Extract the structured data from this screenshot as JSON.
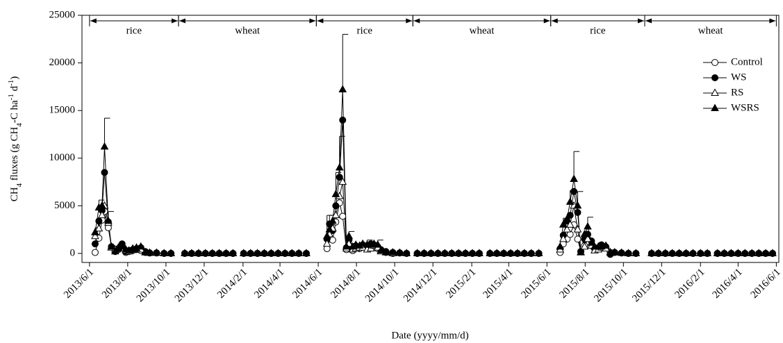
{
  "chart_data": {
    "type": "line",
    "xlabel": "Date (yyyy/mm/d)",
    "ylabel": [
      "CH",
      "4",
      " fluxes (g CH",
      "4",
      "-C ha",
      "-1",
      " d",
      "-1",
      ")"
    ],
    "ylabel_style": [
      "normal",
      "sub",
      "normal",
      "sub",
      "normal",
      "super",
      "normal",
      "super",
      "normal"
    ],
    "xlim": [
      "2013/5/20",
      "2016/6/5"
    ],
    "xticks": [
      "2013/6/1",
      "2013/8/1",
      "2013/10/1",
      "2013/12/1",
      "2014/2/1",
      "2014/4/1",
      "2014/6/1",
      "2014/8/1",
      "2014/10/1",
      "2014/12/1",
      "2015/2/1",
      "2015/4/1",
      "2015/6/1",
      "2015/8/1",
      "2015/10/1",
      "2015/12/1",
      "2016/2/1",
      "2016/4/1",
      "2016/6/1"
    ],
    "ylim": [
      -950,
      25000
    ],
    "yticks": [
      0,
      5000,
      10000,
      15000,
      20000,
      25000
    ],
    "legend": "upper right",
    "periods": [
      {
        "label": "rice",
        "start": "2013/6/1",
        "end": "2013/10/21"
      },
      {
        "label": "wheat",
        "start": "2013/10/21",
        "end": "2014/5/29"
      },
      {
        "label": "rice",
        "start": "2014/5/29",
        "end": "2014/10/30"
      },
      {
        "label": "wheat",
        "start": "2014/10/30",
        "end": "2015/6/7"
      },
      {
        "label": "rice",
        "start": "2015/6/7",
        "end": "2015/11/4"
      },
      {
        "label": "wheat",
        "start": "2015/11/4",
        "end": "2016/6/1"
      }
    ],
    "x": [
      "2013/6/10",
      "2013/6/16",
      "2013/6/21",
      "2013/6/25",
      "2013/7/1",
      "2013/7/6",
      "2013/7/12",
      "2013/7/17",
      "2013/7/23",
      "2013/7/29",
      "2013/8/3",
      "2013/8/9",
      "2013/8/15",
      "2013/8/22",
      "2013/8/29",
      "2013/9/5",
      "2013/9/16",
      "2013/9/28",
      "2013/10/9",
      "2013/10/31",
      "2013/11/11",
      "2013/11/22",
      "2013/12/3",
      "2013/12/14",
      "2013/12/25",
      "2014/1/5",
      "2014/1/16",
      "2014/2/2",
      "2014/2/13",
      "2014/2/24",
      "2014/3/7",
      "2014/3/18",
      "2014/3/29",
      "2014/4/9",
      "2014/4/20",
      "2014/5/1",
      "2014/5/13",
      "2014/6/15",
      "2014/6/19",
      "2014/6/24",
      "2014/6/29",
      "2014/7/5",
      "2014/7/10",
      "2014/7/16",
      "2014/7/20",
      "2014/7/26",
      "2014/7/31",
      "2014/8/6",
      "2014/8/11",
      "2014/8/18",
      "2014/8/24",
      "2014/8/29",
      "2014/9/4",
      "2014/9/9",
      "2014/9/17",
      "2014/9/28",
      "2014/10/9",
      "2014/10/20",
      "2014/11/6",
      "2014/11/17",
      "2014/11/28",
      "2014/12/9",
      "2014/12/20",
      "2014/12/31",
      "2015/1/11",
      "2015/1/22",
      "2015/2/2",
      "2015/2/13",
      "2015/3/2",
      "2015/3/13",
      "2015/3/24",
      "2015/4/4",
      "2015/4/15",
      "2015/4/26",
      "2015/5/7",
      "2015/5/19",
      "2015/6/22",
      "2015/6/27",
      "2015/7/3",
      "2015/7/8",
      "2015/7/14",
      "2015/7/20",
      "2015/7/25",
      "2015/7/31",
      "2015/8/5",
      "2015/8/11",
      "2015/8/16",
      "2015/8/22",
      "2015/8/27",
      "2015/9/3",
      "2015/9/10",
      "2015/9/17",
      "2015/9/28",
      "2015/10/9",
      "2015/10/21",
      "2015/11/15",
      "2015/11/26",
      "2015/12/7",
      "2015/12/18",
      "2015/12/29",
      "2016/1/9",
      "2016/1/20",
      "2016/2/1",
      "2016/2/12",
      "2016/2/28",
      "2016/3/10",
      "2016/3/21",
      "2016/4/1",
      "2016/4/12",
      "2016/4/23",
      "2016/5/4",
      "2016/5/15",
      "2016/5/26"
    ],
    "series": [
      {
        "name": "Control",
        "color": "#000000",
        "marker": "circle",
        "filled": false,
        "values": [
          100,
          1600,
          3500,
          4400,
          2700,
          700,
          300,
          400,
          900,
          100,
          200,
          300,
          400,
          300,
          100,
          50,
          50,
          0,
          0,
          0,
          0,
          0,
          0,
          0,
          0,
          0,
          0,
          0,
          0,
          0,
          0,
          0,
          0,
          0,
          0,
          0,
          0,
          500,
          1500,
          1400,
          3300,
          5300,
          3900,
          400,
          800,
          300,
          600,
          500,
          700,
          500,
          600,
          700,
          500,
          300,
          100,
          0,
          50,
          0,
          0,
          0,
          0,
          0,
          0,
          0,
          0,
          0,
          0,
          0,
          0,
          0,
          0,
          0,
          0,
          0,
          0,
          0,
          100,
          1000,
          1500,
          2000,
          3000,
          1500,
          200,
          800,
          2000,
          1300,
          500,
          500,
          700,
          600,
          100,
          100,
          50,
          0,
          0,
          0,
          0,
          0,
          0,
          0,
          0,
          0,
          0,
          0,
          0,
          0,
          0,
          0,
          0,
          0,
          0,
          0,
          0
        ]
      },
      {
        "name": "WS",
        "color": "#000000",
        "marker": "circle",
        "filled": true,
        "values": [
          1000,
          3400,
          4500,
          8500,
          3300,
          700,
          200,
          500,
          1000,
          200,
          300,
          400,
          500,
          600,
          200,
          50,
          50,
          0,
          0,
          0,
          0,
          0,
          0,
          0,
          0,
          0,
          0,
          0,
          0,
          0,
          0,
          0,
          0,
          0,
          0,
          0,
          0,
          1500,
          3100,
          2400,
          5000,
          8000,
          14000,
          600,
          1400,
          600,
          800,
          700,
          900,
          800,
          1000,
          900,
          700,
          400,
          200,
          100,
          50,
          0,
          0,
          0,
          0,
          0,
          0,
          0,
          0,
          0,
          0,
          0,
          0,
          0,
          0,
          0,
          0,
          0,
          0,
          0,
          500,
          1900,
          3400,
          4000,
          6500,
          4300,
          200,
          1500,
          2000,
          1300,
          600,
          600,
          900,
          700,
          -100,
          100,
          50,
          0,
          0,
          0,
          0,
          0,
          0,
          0,
          0,
          0,
          0,
          0,
          0,
          0,
          0,
          0,
          0,
          0,
          0,
          0,
          0
        ]
      },
      {
        "name": "RS",
        "color": "#000000",
        "marker": "triangle",
        "filled": false,
        "values": [
          1800,
          2600,
          4000,
          5000,
          3200,
          600,
          400,
          600,
          800,
          300,
          200,
          500,
          600,
          400,
          100,
          50,
          50,
          0,
          0,
          0,
          0,
          0,
          0,
          0,
          0,
          0,
          0,
          0,
          0,
          0,
          0,
          0,
          0,
          0,
          0,
          0,
          0,
          1000,
          2000,
          2600,
          4000,
          6000,
          7500,
          500,
          1000,
          400,
          500,
          600,
          600,
          400,
          500,
          800,
          600,
          200,
          100,
          0,
          50,
          0,
          0,
          0,
          0,
          0,
          0,
          0,
          0,
          0,
          0,
          0,
          0,
          0,
          0,
          0,
          0,
          0,
          0,
          0,
          400,
          1500,
          2500,
          3000,
          5000,
          2500,
          100,
          700,
          1500,
          800,
          300,
          400,
          600,
          500,
          100,
          100,
          50,
          0,
          0,
          0,
          0,
          0,
          0,
          0,
          0,
          0,
          0,
          0,
          0,
          0,
          0,
          0,
          0,
          0,
          0,
          0,
          0
        ]
      },
      {
        "name": "WSRS",
        "color": "#000000",
        "marker": "triangle",
        "filled": true,
        "values": [
          2200,
          4800,
          5000,
          11200,
          3400,
          700,
          200,
          500,
          700,
          400,
          300,
          400,
          500,
          700,
          100,
          50,
          50,
          0,
          0,
          0,
          0,
          0,
          0,
          0,
          0,
          0,
          0,
          0,
          0,
          0,
          0,
          0,
          0,
          0,
          0,
          0,
          0,
          1800,
          2500,
          3400,
          6200,
          9000,
          17200,
          700,
          1800,
          700,
          900,
          800,
          1000,
          900,
          900,
          1000,
          900,
          300,
          100,
          100,
          50,
          0,
          0,
          0,
          0,
          0,
          0,
          0,
          0,
          0,
          0,
          0,
          0,
          0,
          0,
          0,
          0,
          0,
          0,
          0,
          700,
          3000,
          3600,
          5400,
          7800,
          5000,
          100,
          2000,
          2800,
          1100,
          700,
          700,
          700,
          800,
          100,
          100,
          50,
          0,
          0,
          0,
          0,
          0,
          0,
          0,
          0,
          0,
          0,
          0,
          0,
          0,
          0,
          0,
          0,
          0,
          0,
          0,
          0
        ],
        "errors": [
          500,
          800,
          null,
          3000,
          1000,
          null,
          null,
          null,
          null,
          null,
          null,
          null,
          null,
          null,
          null,
          null,
          null,
          null,
          null,
          null,
          null,
          null,
          null,
          null,
          null,
          null,
          null,
          null,
          null,
          null,
          null,
          null,
          null,
          null,
          null,
          null,
          null,
          2200,
          1500,
          null,
          2300,
          3300,
          5800,
          null,
          500,
          null,
          null,
          null,
          null,
          500,
          null,
          null,
          500,
          null,
          null,
          null,
          null,
          null,
          null,
          null,
          null,
          null,
          null,
          null,
          null,
          null,
          null,
          null,
          null,
          null,
          null,
          null,
          null,
          null,
          null,
          null,
          null,
          700,
          null,
          1200,
          2900,
          1500,
          null,
          null,
          1000,
          null,
          null,
          null,
          null,
          null,
          null,
          null,
          null,
          null,
          null,
          null,
          null,
          null,
          null,
          null,
          null,
          null,
          null,
          null,
          null,
          null,
          null,
          null,
          null,
          null,
          null,
          null,
          null
        ]
      }
    ]
  }
}
